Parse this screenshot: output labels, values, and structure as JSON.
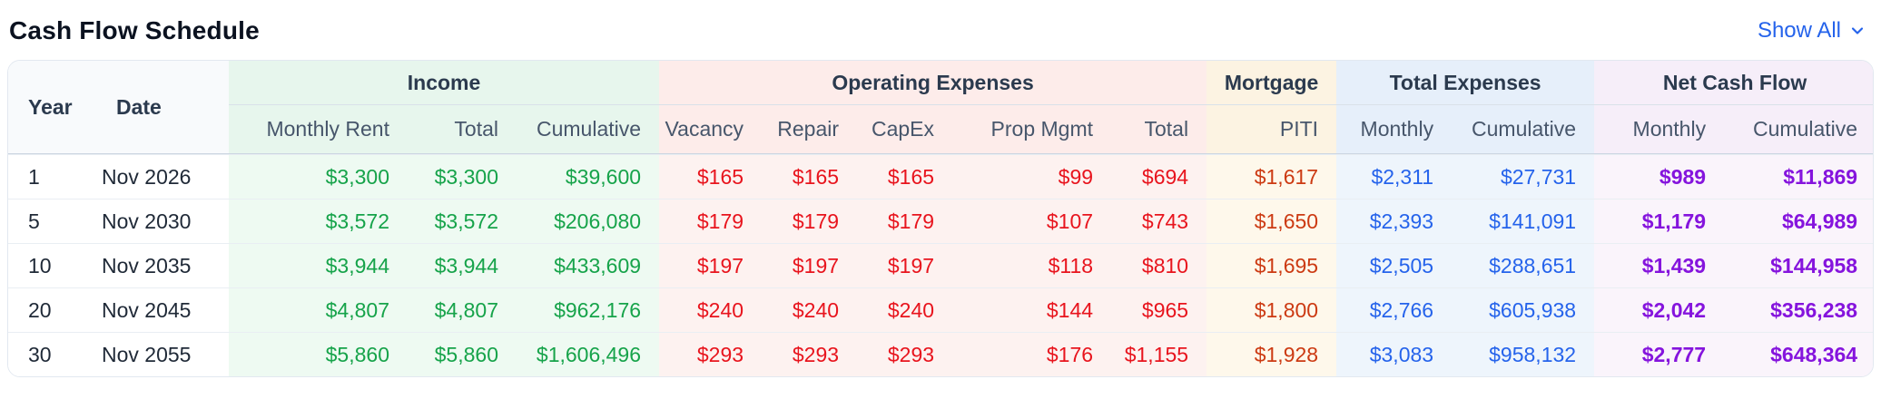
{
  "header": {
    "title": "Cash Flow Schedule",
    "show_all_label": "Show All"
  },
  "colors": {
    "income_text": "#16a34a",
    "operating_expense_text": "#e8141d",
    "mortgage_text": "#cc3a12",
    "total_expenses_text": "#2563eb",
    "net_cash_flow_text": "#8514dd",
    "link_blue": "#2563eb",
    "income_bg": "#eefaf2",
    "operating_bg": "#fdf2f0",
    "mortgage_bg": "#fef8eb",
    "total_expenses_bg": "#eef5fc",
    "net_cash_flow_bg": "#faf4fb"
  },
  "table": {
    "corner_headers": [
      "Year",
      "Date"
    ],
    "groups": [
      {
        "label": "Income",
        "span": 3,
        "key": "income"
      },
      {
        "label": "Operating Expenses",
        "span": 5,
        "key": "op"
      },
      {
        "label": "Mortgage",
        "span": 1,
        "key": "mortgage"
      },
      {
        "label": "Total Expenses",
        "span": 2,
        "key": "te"
      },
      {
        "label": "Net Cash Flow",
        "span": 2,
        "key": "ncf"
      }
    ],
    "sub_headers": [
      "Monthly Rent",
      "Total",
      "Cumulative",
      "Vacancy",
      "Repair",
      "CapEx",
      "Prop Mgmt",
      "Total",
      "PITI",
      "Monthly",
      "Cumulative",
      "Monthly",
      "Cumulative"
    ],
    "column_groups": [
      "plain",
      "plain",
      "income",
      "income",
      "income",
      "op",
      "op",
      "op",
      "op",
      "op",
      "mortgage",
      "te",
      "te",
      "ncf",
      "ncf"
    ],
    "rows": [
      [
        "1",
        "Nov 2026",
        "$3,300",
        "$3,300",
        "$39,600",
        "$165",
        "$165",
        "$165",
        "$99",
        "$694",
        "$1,617",
        "$2,311",
        "$27,731",
        "$989",
        "$11,869"
      ],
      [
        "5",
        "Nov 2030",
        "$3,572",
        "$3,572",
        "$206,080",
        "$179",
        "$179",
        "$179",
        "$107",
        "$743",
        "$1,650",
        "$2,393",
        "$141,091",
        "$1,179",
        "$64,989"
      ],
      [
        "10",
        "Nov 2035",
        "$3,944",
        "$3,944",
        "$433,609",
        "$197",
        "$197",
        "$197",
        "$118",
        "$810",
        "$1,695",
        "$2,505",
        "$288,651",
        "$1,439",
        "$144,958"
      ],
      [
        "20",
        "Nov 2045",
        "$4,807",
        "$4,807",
        "$962,176",
        "$240",
        "$240",
        "$240",
        "$144",
        "$965",
        "$1,800",
        "$2,766",
        "$605,938",
        "$2,042",
        "$356,238"
      ],
      [
        "30",
        "Nov 2055",
        "$5,860",
        "$5,860",
        "$1,606,496",
        "$293",
        "$293",
        "$293",
        "$176",
        "$1,155",
        "$1,928",
        "$3,083",
        "$958,132",
        "$2,777",
        "$648,364"
      ]
    ]
  }
}
